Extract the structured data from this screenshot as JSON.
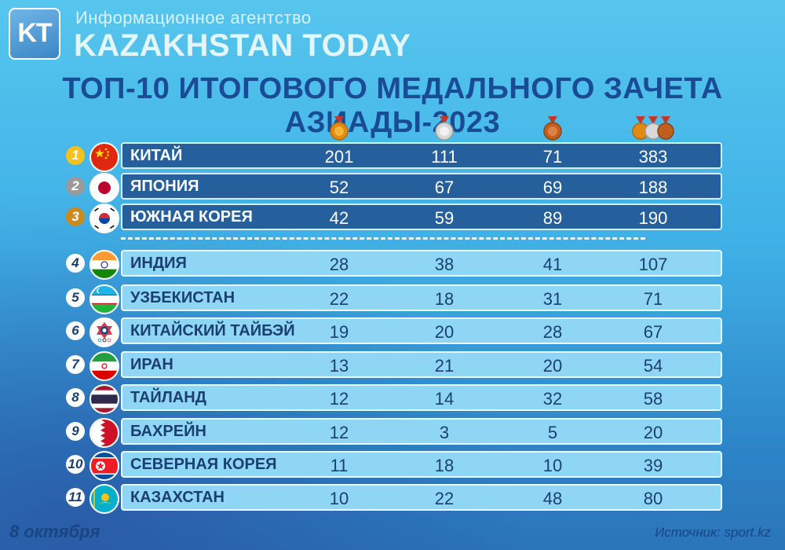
{
  "header": {
    "logo_text": "KT",
    "agency_subtitle": "Информационное агентство",
    "agency_name": "KAZAKHSTAN TODAY"
  },
  "title": "ТОП-10 ИТОГОВОГО МЕДАЛЬНОГО ЗАЧЕТА АЗИАДЫ-2023",
  "columns": [
    {
      "icon": "gold-medal-icon"
    },
    {
      "icon": "silver-medal-icon"
    },
    {
      "icon": "bronze-medal-icon"
    },
    {
      "icon": "all-medals-icon"
    }
  ],
  "colors": {
    "rank1": "#f5c21c",
    "rank2": "#9a9a9a",
    "rank3": "#c98a1e",
    "top_row": "#255f9c",
    "rest_row": "#8fd6f5",
    "title": "#1a4c96"
  },
  "rows": [
    {
      "rank": "1",
      "country": "КИТАЙ",
      "gold": "201",
      "silver": "111",
      "bronze": "71",
      "total": "383",
      "flag": "china-flag-icon"
    },
    {
      "rank": "2",
      "country": "ЯПОНИЯ",
      "gold": "52",
      "silver": "67",
      "bronze": "69",
      "total": "188",
      "flag": "japan-flag-icon"
    },
    {
      "rank": "3",
      "country": "ЮЖНАЯ КОРЕЯ",
      "gold": "42",
      "silver": "59",
      "bronze": "89",
      "total": "190",
      "flag": "south-korea-flag-icon"
    },
    {
      "rank": "4",
      "country": "ИНДИЯ",
      "gold": "28",
      "silver": "38",
      "bronze": "41",
      "total": "107",
      "flag": "india-flag-icon"
    },
    {
      "rank": "5",
      "country": "УЗБЕКИСТАН",
      "gold": "22",
      "silver": "18",
      "bronze": "31",
      "total": "71",
      "flag": "uzbekistan-flag-icon"
    },
    {
      "rank": "6",
      "country": "КИТАЙСКИЙ ТАЙБЭЙ",
      "gold": "19",
      "silver": "20",
      "bronze": "28",
      "total": "67",
      "flag": "chinese-taipei-flag-icon"
    },
    {
      "rank": "7",
      "country": "ИРАН",
      "gold": "13",
      "silver": "21",
      "bronze": "20",
      "total": "54",
      "flag": "iran-flag-icon"
    },
    {
      "rank": "8",
      "country": "ТАЙЛАНД",
      "gold": "12",
      "silver": "14",
      "bronze": "32",
      "total": "58",
      "flag": "thailand-flag-icon"
    },
    {
      "rank": "9",
      "country": "БАХРЕЙН",
      "gold": "12",
      "silver": "3",
      "bronze": "5",
      "total": "20",
      "flag": "bahrain-flag-icon"
    },
    {
      "rank": "10",
      "country": "СЕВЕРНАЯ КОРЕЯ",
      "gold": "11",
      "silver": "18",
      "bronze": "10",
      "total": "39",
      "flag": "north-korea-flag-icon"
    },
    {
      "rank": "11",
      "country": "КАЗАХСТАН",
      "gold": "10",
      "silver": "22",
      "bronze": "48",
      "total": "80",
      "flag": "kazakhstan-flag-icon"
    }
  ],
  "footer": {
    "date": "8 октября",
    "source": "Источник: sport.kz"
  }
}
